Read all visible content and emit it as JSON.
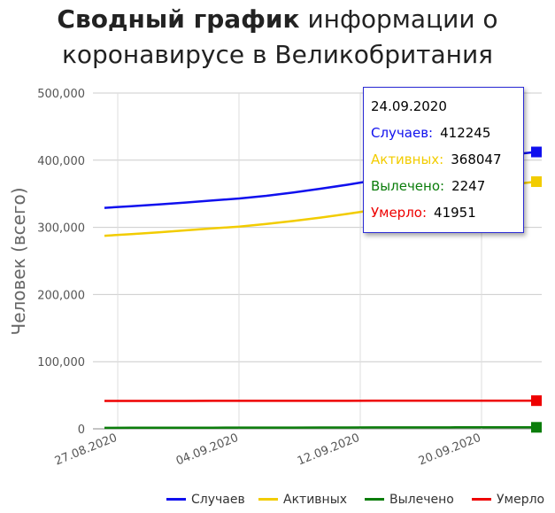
{
  "title": {
    "bold": "Сводный график",
    "line1_rest": " информации о",
    "line2": "коронавирусе в Великобритания"
  },
  "chart_data": {
    "type": "line",
    "ylabel": "Человек (всего)",
    "ylim": [
      0,
      500000
    ],
    "yticks": [
      "0",
      "100,000",
      "200,000",
      "300,000",
      "400,000",
      "500,000"
    ],
    "xticks": [
      "27.08.2020",
      "04.09.2020",
      "12.09.2020",
      "20.09.2020"
    ],
    "x_dates": [
      "24.08.2020",
      "26.08.2020",
      "28.08.2020",
      "30.08.2020",
      "01.09.2020",
      "03.09.2020",
      "05.09.2020",
      "07.09.2020",
      "09.09.2020",
      "11.09.2020",
      "13.09.2020",
      "15.09.2020",
      "17.09.2020",
      "19.09.2020",
      "21.09.2020",
      "23.09.2020",
      "24.09.2020"
    ],
    "series": [
      {
        "name": "Случаев",
        "color": "#1010ee",
        "values": [
          329000,
          331500,
          334000,
          337000,
          340000,
          343000,
          347000,
          352000,
          357500,
          363500,
          370000,
          377000,
          384000,
          391500,
          399500,
          408000,
          412245
        ]
      },
      {
        "name": "Активных",
        "color": "#f2cc00",
        "values": [
          287500,
          290000,
          292500,
          295500,
          298500,
          301000,
          305000,
          309500,
          314500,
          320000,
          326000,
          333000,
          340000,
          347500,
          355500,
          363500,
          368047
        ]
      },
      {
        "name": "Вылечено",
        "color": "#0b7d0b",
        "values": [
          1500,
          1600,
          1650,
          1700,
          1750,
          1800,
          1850,
          1900,
          1950,
          2000,
          2050,
          2100,
          2150,
          2180,
          2200,
          2230,
          2247
        ]
      },
      {
        "name": "Умерло",
        "color": "#ee0000",
        "values": [
          41500,
          41550,
          41600,
          41620,
          41640,
          41660,
          41680,
          41700,
          41720,
          41740,
          41760,
          41800,
          41830,
          41860,
          41900,
          41930,
          41951
        ]
      }
    ]
  },
  "tooltip": {
    "date": "24.09.2020",
    "rows": [
      {
        "label": "Случаев:",
        "value": "412245",
        "color": "#1010ee"
      },
      {
        "label": "Активных:",
        "value": "368047",
        "color": "#f2cc00"
      },
      {
        "label": "Вылечено:",
        "value": "2247",
        "color": "#0b7d0b"
      },
      {
        "label": "Умерло:",
        "value": "41951",
        "color": "#ee0000"
      }
    ]
  },
  "legend": [
    {
      "label": "Случаев",
      "color": "#1010ee"
    },
    {
      "label": "Активных",
      "color": "#f2cc00"
    },
    {
      "label": "Вылечено",
      "color": "#0b7d0b"
    },
    {
      "label": "Умерло",
      "color": "#ee0000"
    }
  ]
}
